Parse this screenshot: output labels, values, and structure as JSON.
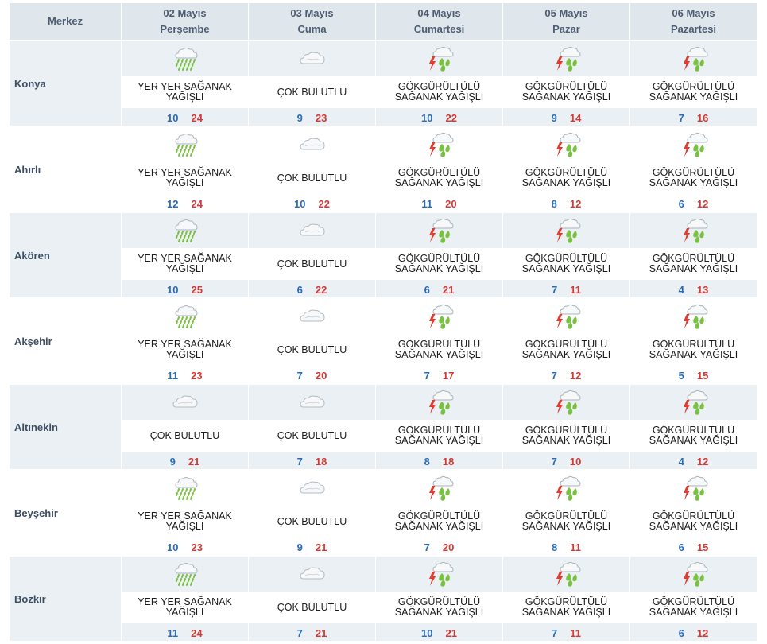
{
  "header": {
    "center_label": "Merkez",
    "days": [
      {
        "date": "02 Mayıs",
        "weekday": "Perşembe"
      },
      {
        "date": "03 Mayıs",
        "weekday": "Cuma"
      },
      {
        "date": "04 Mayıs",
        "weekday": "Cumartesi"
      },
      {
        "date": "05 Mayıs",
        "weekday": "Pazar"
      },
      {
        "date": "06 Mayıs",
        "weekday": "Pazartesi"
      }
    ]
  },
  "rows": [
    {
      "city": "Konya",
      "days": [
        {
          "icon": "shower-rain-icon",
          "desc": "YER YER SAĞANAK YAĞIŞLI",
          "min": "10",
          "max": "24"
        },
        {
          "icon": "cloudy-icon",
          "desc": "ÇOK BULUTLU",
          "min": "9",
          "max": "23"
        },
        {
          "icon": "thunder-shower-icon",
          "desc": "GÖKGÜRÜLTÜLÜ SAĞANAK YAĞIŞLI",
          "min": "10",
          "max": "22"
        },
        {
          "icon": "thunder-shower-icon",
          "desc": "GÖKGÜRÜLTÜLÜ SAĞANAK YAĞIŞLI",
          "min": "9",
          "max": "14"
        },
        {
          "icon": "thunder-shower-icon",
          "desc": "GÖKGÜRÜLTÜLÜ SAĞANAK YAĞIŞLI",
          "min": "7",
          "max": "16"
        }
      ]
    },
    {
      "city": "Ahırlı",
      "days": [
        {
          "icon": "shower-rain-icon",
          "desc": "YER YER SAĞANAK YAĞIŞLI",
          "min": "12",
          "max": "24"
        },
        {
          "icon": "cloudy-icon",
          "desc": "ÇOK BULUTLU",
          "min": "10",
          "max": "22"
        },
        {
          "icon": "thunder-shower-icon",
          "desc": "GÖKGÜRÜLTÜLÜ SAĞANAK YAĞIŞLI",
          "min": "11",
          "max": "20"
        },
        {
          "icon": "thunder-shower-icon",
          "desc": "GÖKGÜRÜLTÜLÜ SAĞANAK YAĞIŞLI",
          "min": "8",
          "max": "12"
        },
        {
          "icon": "thunder-shower-icon",
          "desc": "GÖKGÜRÜLTÜLÜ SAĞANAK YAĞIŞLI",
          "min": "6",
          "max": "12"
        }
      ]
    },
    {
      "city": "Akören",
      "days": [
        {
          "icon": "shower-rain-icon",
          "desc": "YER YER SAĞANAK YAĞIŞLI",
          "min": "10",
          "max": "25"
        },
        {
          "icon": "cloudy-icon",
          "desc": "ÇOK BULUTLU",
          "min": "6",
          "max": "22"
        },
        {
          "icon": "thunder-shower-icon",
          "desc": "GÖKGÜRÜLTÜLÜ SAĞANAK YAĞIŞLI",
          "min": "6",
          "max": "21"
        },
        {
          "icon": "thunder-shower-icon",
          "desc": "GÖKGÜRÜLTÜLÜ SAĞANAK YAĞIŞLI",
          "min": "7",
          "max": "11"
        },
        {
          "icon": "thunder-shower-icon",
          "desc": "GÖKGÜRÜLTÜLÜ SAĞANAK YAĞIŞLI",
          "min": "4",
          "max": "13"
        }
      ]
    },
    {
      "city": "Akşehir",
      "days": [
        {
          "icon": "shower-rain-icon",
          "desc": "YER YER SAĞANAK YAĞIŞLI",
          "min": "11",
          "max": "23"
        },
        {
          "icon": "cloudy-icon",
          "desc": "ÇOK BULUTLU",
          "min": "7",
          "max": "20"
        },
        {
          "icon": "thunder-shower-icon",
          "desc": "GÖKGÜRÜLTÜLÜ SAĞANAK YAĞIŞLI",
          "min": "7",
          "max": "17"
        },
        {
          "icon": "thunder-shower-icon",
          "desc": "GÖKGÜRÜLTÜLÜ SAĞANAK YAĞIŞLI",
          "min": "7",
          "max": "12"
        },
        {
          "icon": "thunder-shower-icon",
          "desc": "GÖKGÜRÜLTÜLÜ SAĞANAK YAĞIŞLI",
          "min": "5",
          "max": "15"
        }
      ]
    },
    {
      "city": "Altınekin",
      "days": [
        {
          "icon": "cloudy-icon",
          "desc": "ÇOK BULUTLU",
          "min": "9",
          "max": "21"
        },
        {
          "icon": "cloudy-icon",
          "desc": "ÇOK BULUTLU",
          "min": "7",
          "max": "18"
        },
        {
          "icon": "thunder-shower-icon",
          "desc": "GÖKGÜRÜLTÜLÜ SAĞANAK YAĞIŞLI",
          "min": "8",
          "max": "18"
        },
        {
          "icon": "thunder-shower-icon",
          "desc": "GÖKGÜRÜLTÜLÜ SAĞANAK YAĞIŞLI",
          "min": "7",
          "max": "10"
        },
        {
          "icon": "thunder-shower-icon",
          "desc": "GÖKGÜRÜLTÜLÜ SAĞANAK YAĞIŞLI",
          "min": "4",
          "max": "12"
        }
      ]
    },
    {
      "city": "Beyşehir",
      "days": [
        {
          "icon": "shower-rain-icon",
          "desc": "YER YER SAĞANAK YAĞIŞLI",
          "min": "10",
          "max": "23"
        },
        {
          "icon": "cloudy-icon",
          "desc": "ÇOK BULUTLU",
          "min": "9",
          "max": "21"
        },
        {
          "icon": "thunder-shower-icon",
          "desc": "GÖKGÜRÜLTÜLÜ SAĞANAK YAĞIŞLI",
          "min": "7",
          "max": "20"
        },
        {
          "icon": "thunder-shower-icon",
          "desc": "GÖKGÜRÜLTÜLÜ SAĞANAK YAĞIŞLI",
          "min": "8",
          "max": "11"
        },
        {
          "icon": "thunder-shower-icon",
          "desc": "GÖKGÜRÜLTÜLÜ SAĞANAK YAĞIŞLI",
          "min": "6",
          "max": "15"
        }
      ]
    },
    {
      "city": "Bozkır",
      "days": [
        {
          "icon": "shower-rain-icon",
          "desc": "YER YER SAĞANAK YAĞIŞLI",
          "min": "11",
          "max": "24"
        },
        {
          "icon": "cloudy-icon",
          "desc": "ÇOK BULUTLU",
          "min": "7",
          "max": "21"
        },
        {
          "icon": "thunder-shower-icon",
          "desc": "GÖKGÜRÜLTÜLÜ SAĞANAK YAĞIŞLI",
          "min": "10",
          "max": "21"
        },
        {
          "icon": "thunder-shower-icon",
          "desc": "GÖKGÜRÜLTÜLÜ SAĞANAK YAĞIŞLI",
          "min": "7",
          "max": "11"
        },
        {
          "icon": "thunder-shower-icon",
          "desc": "GÖKGÜRÜLTÜLÜ SAĞANAK YAĞIŞLI",
          "min": "6",
          "max": "12"
        }
      ]
    }
  ],
  "colors": {
    "header_bg": "#dfe6ec",
    "band_bg": "#eaf0f3",
    "min_temp": "#2b6cb6",
    "max_temp": "#d33a36",
    "rain": "#7ac142",
    "lightning": "#e23a2f"
  }
}
